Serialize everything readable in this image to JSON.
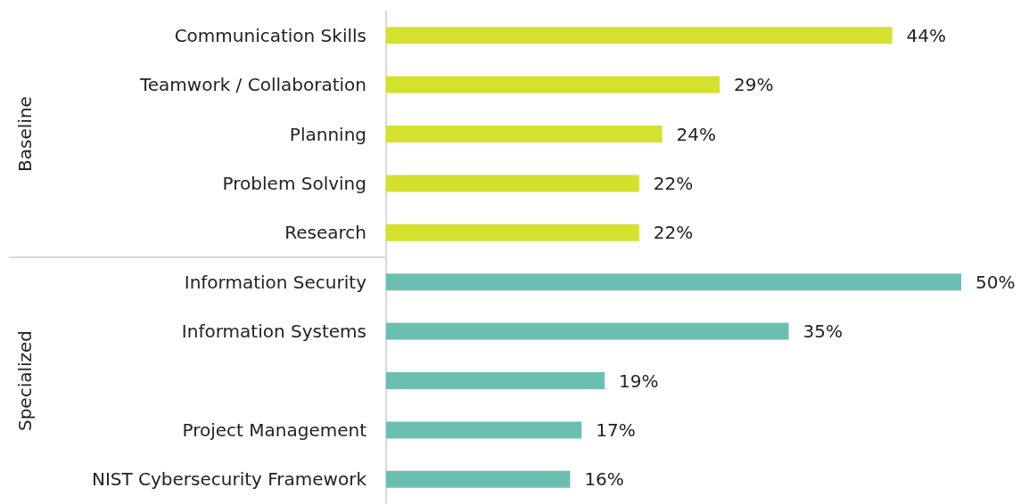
{
  "chart_data": {
    "type": "bar",
    "orientation": "horizontal",
    "data_labels": true,
    "annotations": [
      "Baseline",
      "Specialized"
    ],
    "categories": [
      "Communication Skills",
      "Teamwork / Collaboration",
      "Planning",
      "Problem Solving",
      "Research",
      "Information Security",
      "Information Systems",
      null,
      "Project Management",
      "NIST Cybersecurity Framework"
    ],
    "series": [
      {
        "color": "#d4e12f",
        "values": [
          44,
          29,
          24,
          22,
          22,
          null,
          null,
          null,
          null,
          null
        ],
        "value_labels": [
          "44%",
          "29%",
          "24%",
          "22%",
          "22%",
          null,
          null,
          null,
          null,
          null
        ]
      },
      {
        "color": "#6bbfb0",
        "values": [
          null,
          null,
          null,
          null,
          null,
          50,
          35,
          19,
          17,
          16
        ],
        "value_labels": [
          null,
          null,
          null,
          null,
          null,
          "50%",
          "35%",
          "19%",
          "17%",
          "16%"
        ]
      }
    ]
  }
}
